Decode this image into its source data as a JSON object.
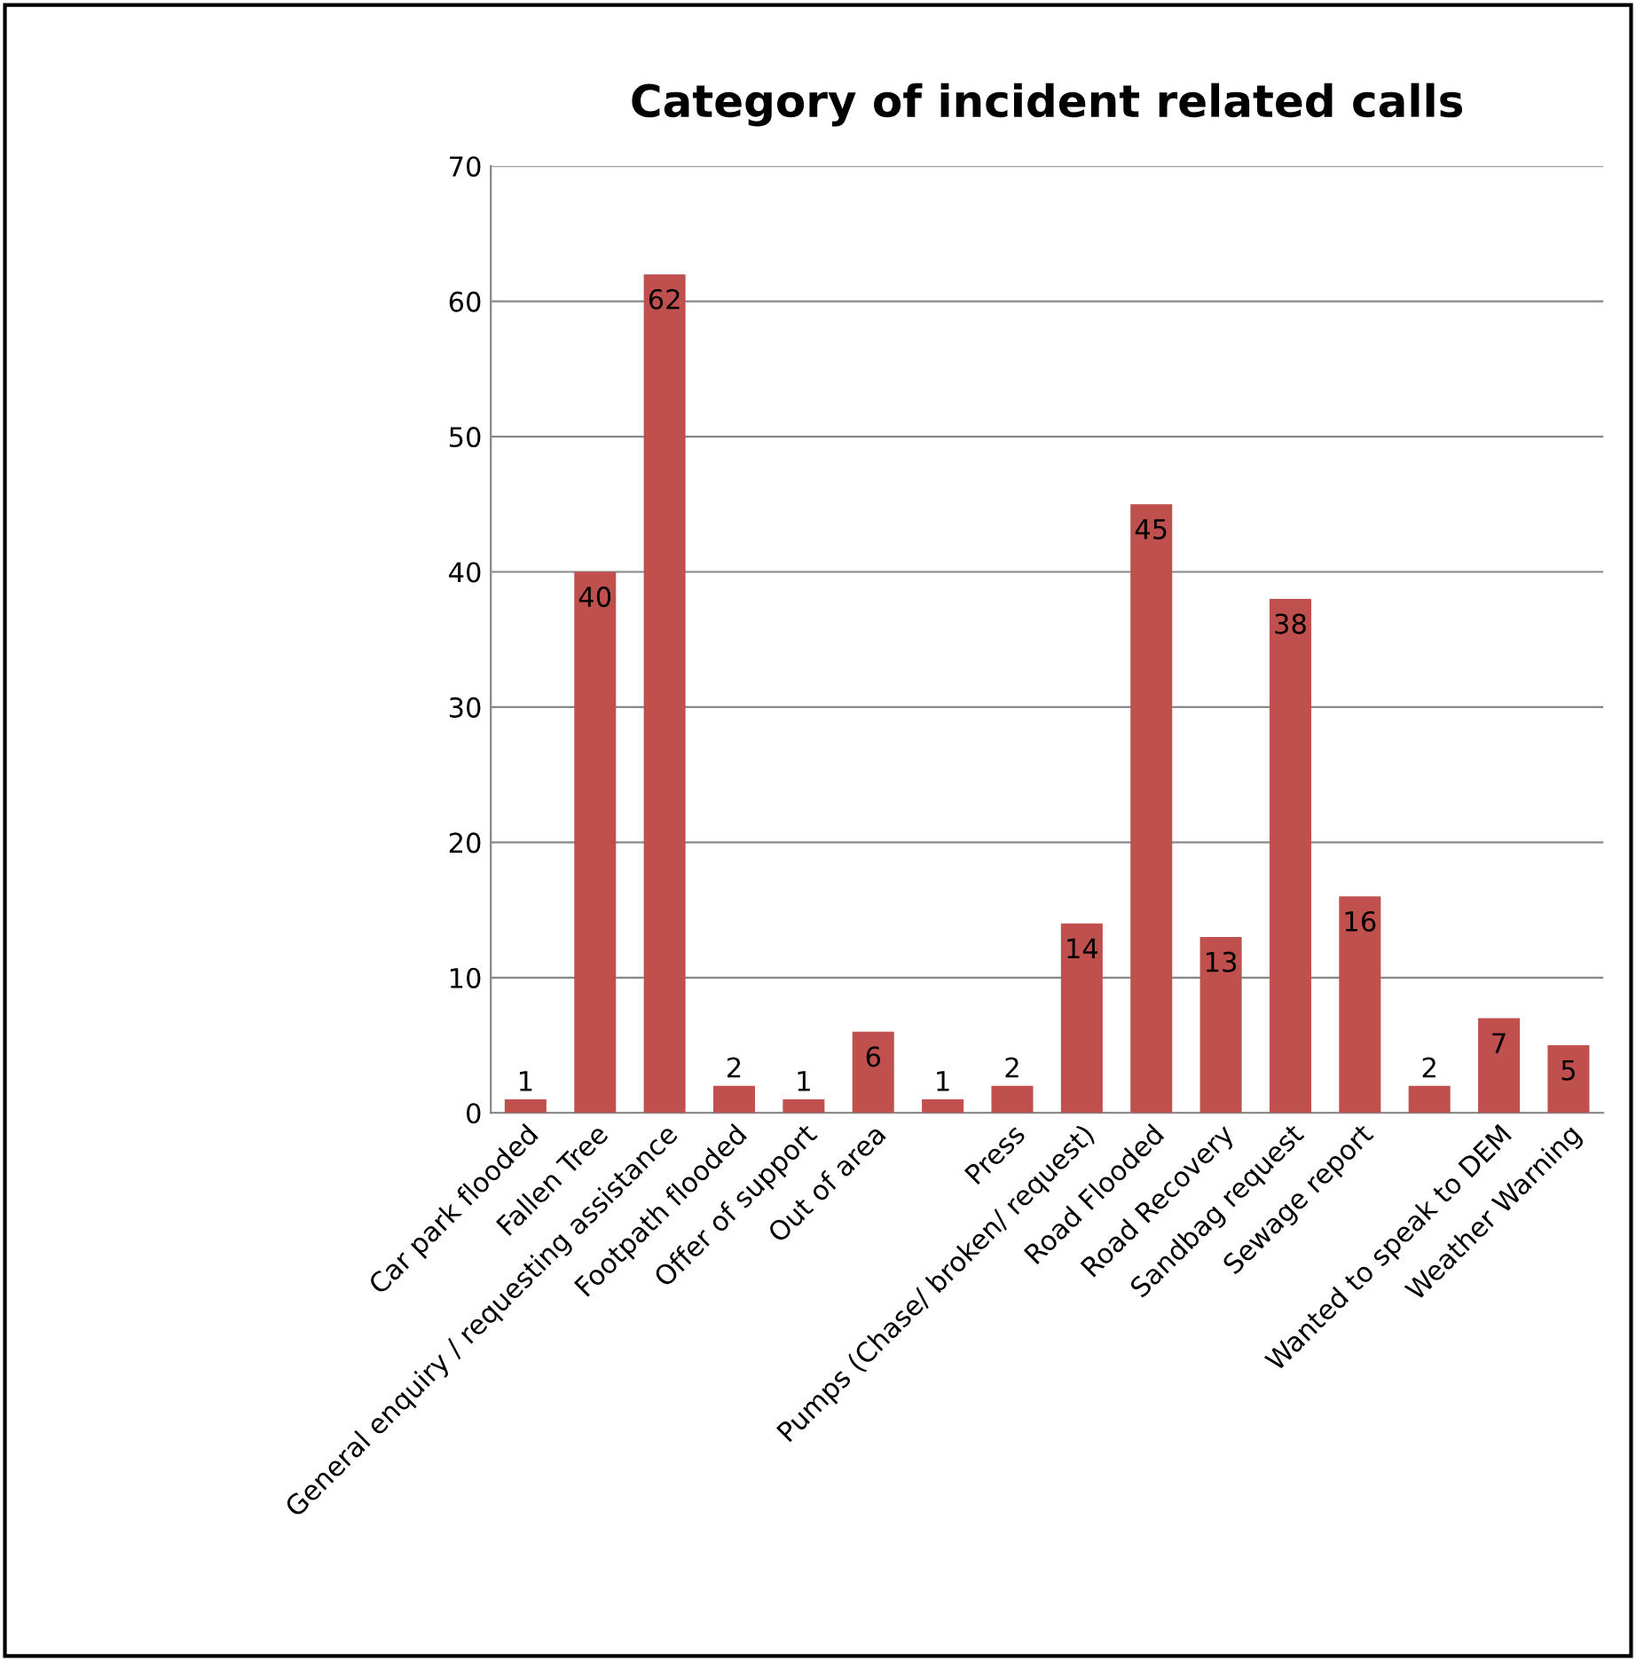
{
  "chart_data": {
    "type": "bar",
    "title": "Category of incident related calls",
    "categories": [
      "Car park flooded",
      "Fallen Tree",
      "General enquiry / requesting assistance",
      "Footpath flooded",
      "Offer of support",
      "Out of area",
      null,
      "Press",
      "Pumps (Chase/ broken/ request)",
      "Road Flooded",
      "Road Recovery",
      "Sandbag request",
      "Sewage report",
      null,
      "Wanted to speak to DEM",
      "Weather Warning"
    ],
    "values": [
      1,
      40,
      62,
      2,
      1,
      6,
      1,
      2,
      14,
      45,
      13,
      38,
      16,
      2,
      7,
      5
    ],
    "color": "#c0504d",
    "ylim": [
      0,
      70
    ],
    "yticks": [
      0,
      10,
      20,
      30,
      40,
      50,
      60,
      70
    ],
    "grid": "y",
    "data_labels": true,
    "legend": false
  }
}
